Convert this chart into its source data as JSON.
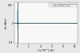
{
  "title": "",
  "ylabel": "Hz (A/m)",
  "xlabel": "t (s*10^{-8})",
  "xlim": [
    -5e-09,
    1.05e-07
  ],
  "ylim": [
    -0.85,
    0.85
  ],
  "ytick_labels": [
    "-0.8",
    "",
    "0",
    "",
    "0.75"
  ],
  "ytick_vals": [
    -0.8,
    -0.4,
    0.0,
    0.4,
    0.75
  ],
  "xtick_vals": [
    0,
    2e-08,
    4e-08,
    6e-08,
    8e-08,
    1e-07
  ],
  "xtick_labels": [
    "0",
    "2",
    "4",
    "6",
    "8",
    "10"
  ],
  "legend_labels": [
    "calculated/simulated curve",
    "experimental curve"
  ],
  "line_color_sim": "#87CEEB",
  "line_color_exp": "#7EC8E3",
  "bg_color": "#e8e8e8",
  "plot_bg": "#f8f8f8"
}
